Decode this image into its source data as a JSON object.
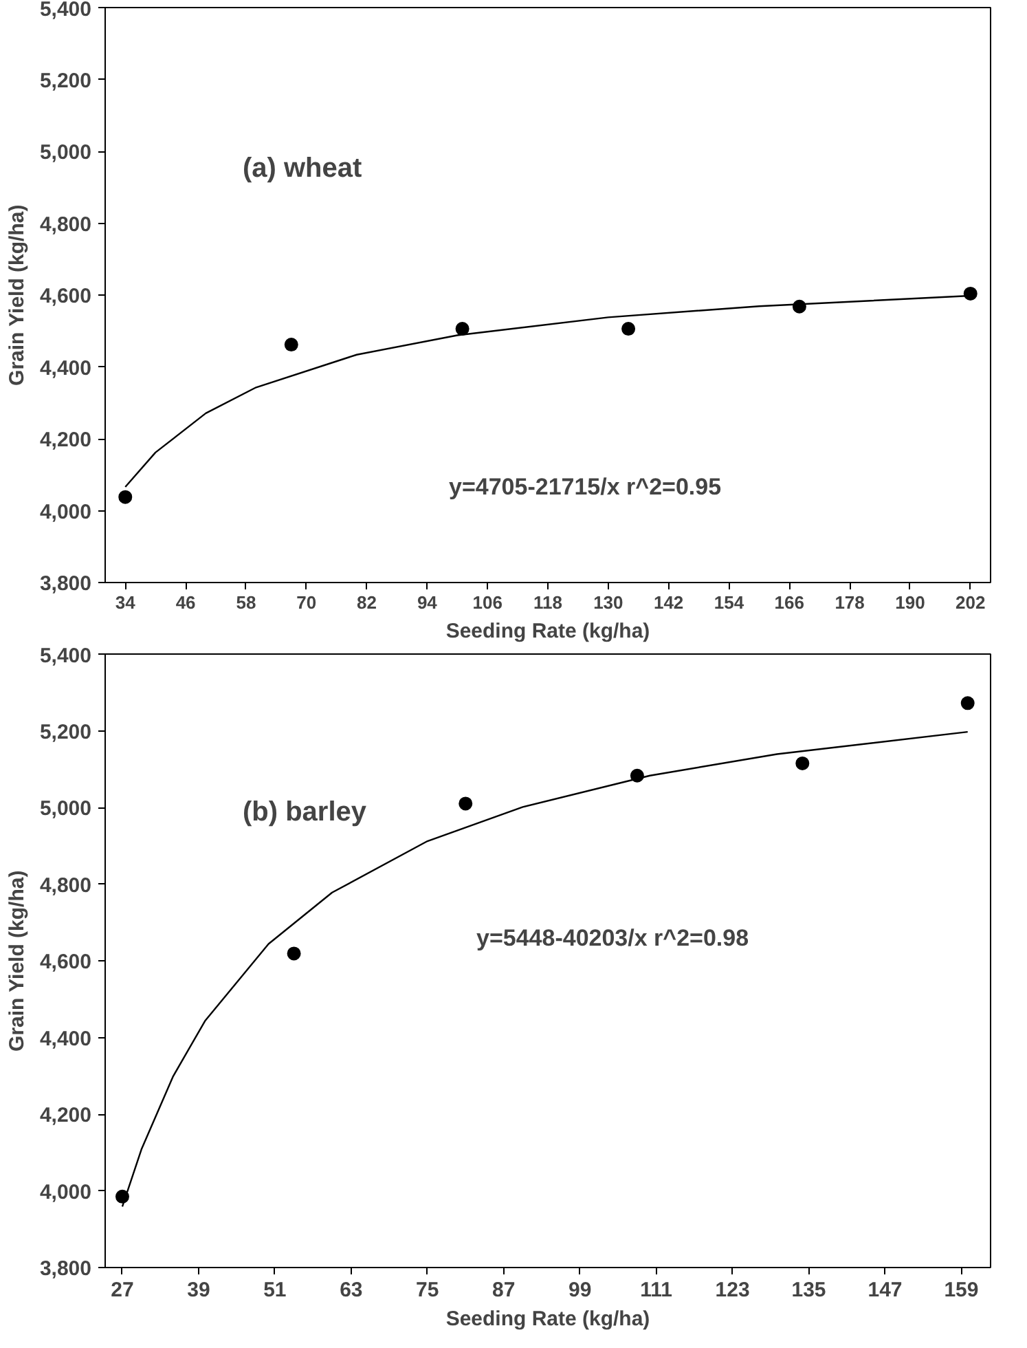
{
  "chart_data": [
    {
      "type": "scatter",
      "title": "(a) wheat",
      "xlabel": "Seeding Rate (kg/ha)",
      "ylabel": "Grain Yield (kg/ha)",
      "annotations": [
        "y=4705-21715/x  r^2=0.95"
      ],
      "grid": false,
      "xlim": [
        30,
        206
      ],
      "xticks": [
        34,
        46,
        58,
        70,
        82,
        94,
        106,
        118,
        130,
        142,
        154,
        166,
        178,
        190,
        202
      ],
      "ylim": [
        3800,
        5400
      ],
      "yticks": [
        {
          "value": 3800,
          "label": "3,800"
        },
        {
          "value": 4000,
          "label": "4,000"
        },
        {
          "value": 4200,
          "label": "4,200"
        },
        {
          "value": 4400,
          "label": "4,400"
        },
        {
          "value": 4600,
          "label": "4,600"
        },
        {
          "value": 4800,
          "label": "4,800"
        },
        {
          "value": 5000,
          "label": "5,000"
        },
        {
          "value": 5200,
          "label": "5,200"
        },
        {
          "value": 5400,
          "label": "5,400"
        }
      ],
      "series": [
        {
          "marker": "circle",
          "color": "#000000",
          "x": [
            34,
            67,
            101,
            134,
            168,
            202
          ],
          "values": [
            4038,
            4462,
            4506,
            4506,
            4568,
            4604
          ]
        },
        {
          "type": "line",
          "color": "#000000",
          "x": [
            34,
            40,
            50,
            60,
            80,
            100,
            130,
            160,
            202
          ],
          "values": [
            4066,
            4162,
            4271,
            4343,
            4434,
            4488,
            4538,
            4569,
            4598
          ]
        }
      ]
    },
    {
      "type": "scatter",
      "title": "(b) barley",
      "xlabel": "Seeding Rate (kg/ha)",
      "ylabel": "Grain Yield (kg/ha)",
      "annotations": [
        "y=5448-40203/x r^2=0.98"
      ],
      "grid": false,
      "xlim": [
        24.3,
        163.6
      ],
      "xticks": [
        27,
        39,
        51,
        63,
        75,
        87,
        99,
        111,
        123,
        135,
        147,
        159
      ],
      "ylim": [
        3800,
        5400
      ],
      "yticks": [
        {
          "value": 3800,
          "label": "3,800"
        },
        {
          "value": 4000,
          "label": "4,000"
        },
        {
          "value": 4200,
          "label": "4,200"
        },
        {
          "value": 4400,
          "label": "4,400"
        },
        {
          "value": 4600,
          "label": "4,600"
        },
        {
          "value": 4800,
          "label": "4,800"
        },
        {
          "value": 5000,
          "label": "5,000"
        },
        {
          "value": 5200,
          "label": "5,200"
        },
        {
          "value": 5400,
          "label": "5,400"
        }
      ],
      "series": [
        {
          "marker": "circle",
          "color": "#000000",
          "x": [
            27,
            54,
            81,
            108,
            134,
            160
          ],
          "values": [
            3985,
            4619,
            5010,
            5083,
            5115,
            5272
          ]
        },
        {
          "type": "line",
          "color": "#000000",
          "x": [
            27,
            30,
            35,
            40,
            50,
            60,
            75,
            90,
            110,
            130,
            160
          ],
          "values": [
            3959,
            4108,
            4299,
            4443,
            4644,
            4778,
            4912,
            5001,
            5083,
            5139,
            5197
          ]
        }
      ]
    }
  ]
}
